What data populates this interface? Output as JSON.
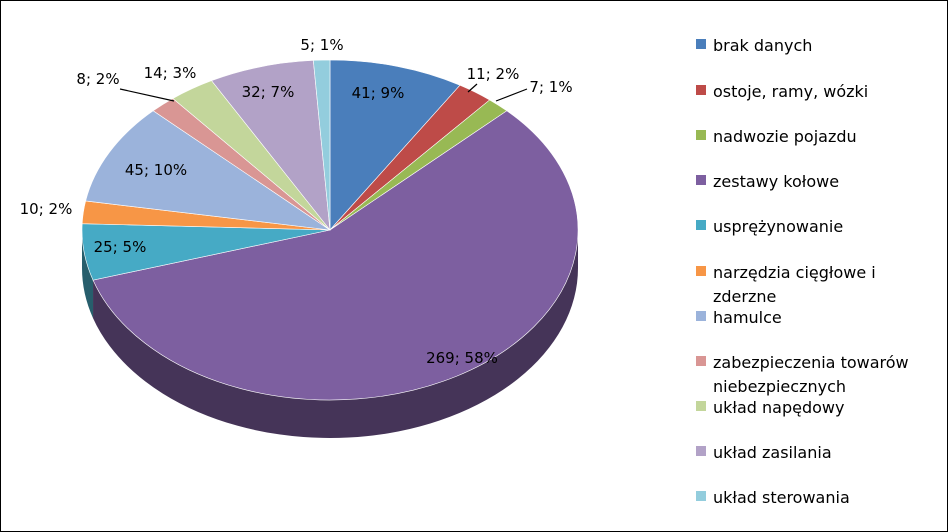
{
  "chart_data": {
    "type": "pie",
    "title": "",
    "slices": [
      {
        "name": "brak danych",
        "value": 41,
        "percent": "9%",
        "label": "41; 9%",
        "color": "#4a7ebb"
      },
      {
        "name": "ostoje, ramy, wózki",
        "value": 11,
        "percent": "2%",
        "label": "11; 2%",
        "color": "#be4b48"
      },
      {
        "name": "nadwozie pojazdu",
        "value": 7,
        "percent": "1%",
        "label": "7; 1%",
        "color": "#98b954"
      },
      {
        "name": "zestawy kołowe",
        "value": 269,
        "percent": "58%",
        "label": "269; 58%",
        "color": "#7d5fa0"
      },
      {
        "name": "usprężynowanie",
        "value": 25,
        "percent": "5%",
        "label": "25; 5%",
        "color": "#46aac5"
      },
      {
        "name": "narzędzia cięgłowe i zderzne",
        "value": 10,
        "percent": "2%",
        "label": "10; 2%",
        "color": "#f79646"
      },
      {
        "name": "hamulce",
        "value": 45,
        "percent": "10%",
        "label": "45; 10%",
        "color": "#9bb3db"
      },
      {
        "name": "zabezpieczenia towarów niebezpiecznych",
        "value": 8,
        "percent": "2%",
        "label": "8; 2%",
        "color": "#d99694"
      },
      {
        "name": "układ napędowy",
        "value": 14,
        "percent": "3%",
        "label": "14; 3%",
        "color": "#c3d69b"
      },
      {
        "name": "układ zasilania",
        "value": 32,
        "percent": "7%",
        "label": "32; 7%",
        "color": "#b2a2c7"
      },
      {
        "name": "układ sterowania",
        "value": 5,
        "percent": "1%",
        "label": "5; 1%",
        "color": "#93cddd"
      }
    ],
    "legend_position": "right",
    "style": "3d-exploded-pie"
  }
}
